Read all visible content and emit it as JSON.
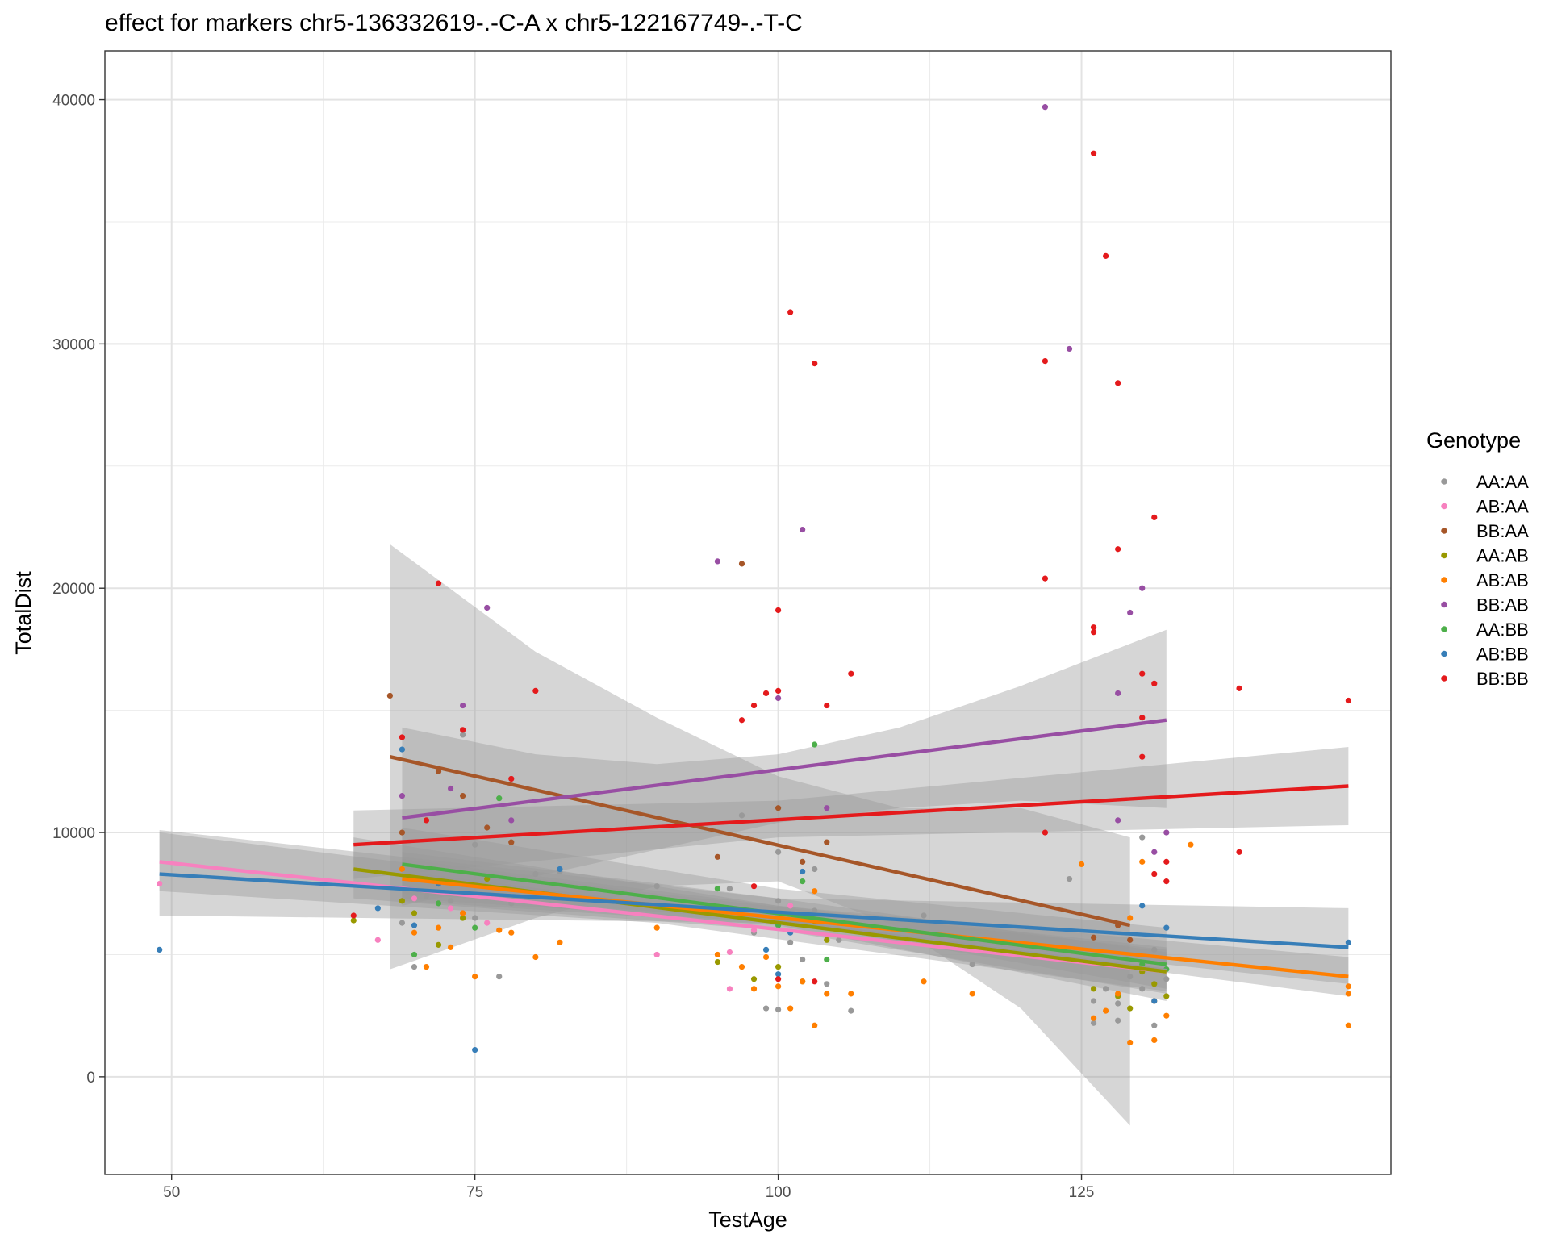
{
  "chart_data": {
    "type": "scatter",
    "title": "effect for markers chr5-136332619-.-C-A x chr5-122167749-.-T-C",
    "xlabel": "TestAge",
    "ylabel": "TotalDist",
    "xlim": [
      44.5,
      150.5
    ],
    "ylim": [
      -4000,
      42000
    ],
    "x_ticks": [
      50,
      75,
      100,
      125
    ],
    "y_ticks": [
      0,
      10000,
      20000,
      30000,
      40000
    ],
    "x_tick_labels": [
      "50",
      "75",
      "100",
      "125"
    ],
    "y_tick_labels": [
      "0",
      "10000",
      "20000",
      "30000",
      "40000"
    ],
    "grid": true,
    "legend": {
      "title": "Genotype",
      "position": "right"
    },
    "series": [
      {
        "name": "AA:AA",
        "color": "#999999",
        "points": [
          [
            69,
            6300
          ],
          [
            70,
            4500
          ],
          [
            71,
            7400
          ],
          [
            72,
            8000
          ],
          [
            73,
            7200
          ],
          [
            74,
            14000
          ],
          [
            75,
            9500
          ],
          [
            75,
            6500
          ],
          [
            77,
            4100
          ],
          [
            78,
            7100
          ],
          [
            80,
            8300
          ],
          [
            82,
            8400
          ],
          [
            90,
            7800
          ],
          [
            96,
            7700
          ],
          [
            98,
            5900
          ],
          [
            99,
            2800
          ],
          [
            100,
            2750
          ],
          [
            100,
            6500
          ],
          [
            100,
            7200
          ],
          [
            101,
            5500
          ],
          [
            102,
            4800
          ],
          [
            103,
            6800
          ],
          [
            104,
            3800
          ],
          [
            105,
            5600
          ],
          [
            106,
            2700
          ],
          [
            112,
            6600
          ],
          [
            116,
            4600
          ],
          [
            124,
            8100
          ],
          [
            126,
            2200
          ],
          [
            126,
            3100
          ],
          [
            127,
            3600
          ],
          [
            128,
            2300
          ],
          [
            128,
            3000
          ],
          [
            129,
            4100
          ],
          [
            130,
            3600
          ],
          [
            130,
            9800
          ],
          [
            131,
            2100
          ],
          [
            131,
            5200
          ],
          [
            132,
            4000
          ],
          [
            97,
            10700
          ],
          [
            100,
            9200
          ],
          [
            103,
            8500
          ]
        ],
        "fit": [
          [
            69,
            8350
          ],
          [
            132,
            4350
          ]
        ],
        "ci": {
          "x": [
            69,
            100,
            132
          ],
          "lower": [
            7500,
            6400,
            3600
          ],
          "upper": [
            9200,
            7300,
            5100
          ]
        }
      },
      {
        "name": "AB:AA",
        "color": "#F781BF",
        "points": [
          [
            49,
            7900
          ],
          [
            67,
            5600
          ],
          [
            70,
            7300
          ],
          [
            73,
            6900
          ],
          [
            76,
            6300
          ],
          [
            90,
            5000
          ],
          [
            96,
            3600
          ],
          [
            96,
            5100
          ],
          [
            98,
            6000
          ],
          [
            101,
            7000
          ]
        ],
        "fit": [
          [
            49,
            8800
          ],
          [
            132,
            4300
          ]
        ],
        "ci": {
          "x": [
            49,
            90,
            132
          ],
          "lower": [
            7600,
            6300,
            3500
          ],
          "upper": [
            10000,
            7500,
            5200
          ]
        }
      },
      {
        "name": "BB:AA",
        "color": "#A65628",
        "points": [
          [
            68,
            15600
          ],
          [
            69,
            10000
          ],
          [
            72,
            12500
          ],
          [
            74,
            11500
          ],
          [
            76,
            10200
          ],
          [
            78,
            9600
          ],
          [
            95,
            9000
          ],
          [
            97,
            21000
          ],
          [
            100,
            11000
          ],
          [
            102,
            8800
          ],
          [
            104,
            9600
          ],
          [
            126,
            5700
          ],
          [
            128,
            6200
          ],
          [
            129,
            5600
          ]
        ],
        "fit": [
          [
            68,
            13100
          ],
          [
            129,
            6200
          ]
        ],
        "ci": {
          "x": [
            68,
            80,
            90,
            100,
            110,
            120,
            129
          ],
          "lower": [
            4400,
            6500,
            7800,
            8000,
            6100,
            2800,
            -2000
          ],
          "upper": [
            21800,
            17400,
            14700,
            12300,
            11000,
            11000,
            9800
          ]
        }
      },
      {
        "name": "AA:AB",
        "color": "#999900",
        "points": [
          [
            65,
            6400
          ],
          [
            69,
            7200
          ],
          [
            70,
            6700
          ],
          [
            72,
            5400
          ],
          [
            74,
            6500
          ],
          [
            76,
            8100
          ],
          [
            95,
            4700
          ],
          [
            98,
            4000
          ],
          [
            100,
            4500
          ],
          [
            102,
            3900
          ],
          [
            103,
            6200
          ],
          [
            104,
            5600
          ],
          [
            126,
            3600
          ],
          [
            128,
            3300
          ],
          [
            129,
            2800
          ],
          [
            130,
            4300
          ],
          [
            131,
            3800
          ],
          [
            132,
            3300
          ]
        ],
        "fit": [
          [
            65,
            8500
          ],
          [
            132,
            4300
          ]
        ],
        "ci": {
          "x": [
            65,
            100,
            132
          ],
          "lower": [
            7300,
            6000,
            3400
          ],
          "upper": [
            9800,
            7000,
            5300
          ]
        }
      },
      {
        "name": "AB:AB",
        "color": "#FF7F00",
        "points": [
          [
            69,
            8500
          ],
          [
            70,
            5900
          ],
          [
            71,
            4500
          ],
          [
            72,
            6100
          ],
          [
            73,
            5300
          ],
          [
            74,
            6700
          ],
          [
            75,
            4100
          ],
          [
            76,
            7400
          ],
          [
            77,
            6000
          ],
          [
            78,
            5900
          ],
          [
            80,
            4900
          ],
          [
            82,
            5500
          ],
          [
            90,
            6100
          ],
          [
            95,
            5000
          ],
          [
            97,
            4500
          ],
          [
            98,
            3600
          ],
          [
            99,
            4900
          ],
          [
            100,
            3700
          ],
          [
            101,
            2800
          ],
          [
            102,
            3900
          ],
          [
            103,
            2100
          ],
          [
            103,
            7600
          ],
          [
            104,
            3400
          ],
          [
            106,
            3400
          ],
          [
            112,
            3900
          ],
          [
            116,
            3400
          ],
          [
            125,
            8700
          ],
          [
            126,
            2400
          ],
          [
            127,
            2700
          ],
          [
            128,
            3400
          ],
          [
            129,
            1400
          ],
          [
            129,
            6500
          ],
          [
            130,
            8800
          ],
          [
            131,
            1500
          ],
          [
            131,
            3100
          ],
          [
            132,
            2500
          ],
          [
            134,
            9500
          ],
          [
            147,
            3700
          ],
          [
            147,
            3400
          ],
          [
            147,
            2100
          ]
        ],
        "fit": [
          [
            69,
            8100
          ],
          [
            147,
            4100
          ]
        ],
        "ci": {
          "x": [
            69,
            100,
            147
          ],
          "lower": [
            7300,
            6300,
            3300
          ],
          "upper": [
            8900,
            7000,
            4900
          ]
        }
      },
      {
        "name": "BB:AB",
        "color": "#984EA3",
        "points": [
          [
            69,
            11500
          ],
          [
            73,
            11800
          ],
          [
            74,
            15200
          ],
          [
            76,
            19200
          ],
          [
            78,
            10500
          ],
          [
            95,
            21100
          ],
          [
            100,
            15500
          ],
          [
            102,
            22400
          ],
          [
            104,
            11000
          ],
          [
            122,
            39700
          ],
          [
            124,
            29800
          ],
          [
            128,
            15700
          ],
          [
            128,
            10500
          ],
          [
            129,
            19000
          ],
          [
            130,
            20000
          ],
          [
            131,
            9200
          ],
          [
            132,
            10000
          ]
        ],
        "fit": [
          [
            69,
            10600
          ],
          [
            132,
            14600
          ]
        ],
        "ci": {
          "x": [
            69,
            80,
            90,
            100,
            110,
            120,
            132
          ],
          "lower": [
            7000,
            8200,
            9300,
            10400,
            11000,
            11300,
            11000
          ],
          "upper": [
            14300,
            13200,
            12800,
            13200,
            14300,
            16000,
            18300
          ]
        }
      },
      {
        "name": "AA:BB",
        "color": "#4DAF4A",
        "points": [
          [
            70,
            5000
          ],
          [
            72,
            7100
          ],
          [
            75,
            6100
          ],
          [
            77,
            11400
          ],
          [
            95,
            7700
          ],
          [
            100,
            6200
          ],
          [
            102,
            8000
          ],
          [
            103,
            13600
          ],
          [
            104,
            4800
          ],
          [
            130,
            4600
          ],
          [
            132,
            4400
          ]
        ],
        "fit": [
          [
            69,
            8700
          ],
          [
            132,
            4600
          ]
        ],
        "ci": {
          "x": [
            69,
            100,
            132
          ],
          "lower": [
            7200,
            6200,
            3100
          ],
          "upper": [
            10200,
            7700,
            6100
          ]
        }
      },
      {
        "name": "AB:BB",
        "color": "#377EB8",
        "points": [
          [
            49,
            5200
          ],
          [
            67,
            6900
          ],
          [
            69,
            13400
          ],
          [
            70,
            6200
          ],
          [
            72,
            7900
          ],
          [
            75,
            1100
          ],
          [
            82,
            8500
          ],
          [
            99,
            5200
          ],
          [
            100,
            4200
          ],
          [
            101,
            5900
          ],
          [
            102,
            8400
          ],
          [
            130,
            7000
          ],
          [
            131,
            3100
          ],
          [
            132,
            6100
          ],
          [
            147,
            5500
          ]
        ],
        "fit": [
          [
            49,
            8300
          ],
          [
            147,
            5300
          ]
        ],
        "ci": {
          "x": [
            49,
            100,
            147
          ],
          "lower": [
            6600,
            6300,
            3800
          ],
          "upper": [
            10100,
            7300,
            6900
          ]
        }
      },
      {
        "name": "BB:BB",
        "color": "#E41A1C",
        "points": [
          [
            65,
            6600
          ],
          [
            69,
            13900
          ],
          [
            71,
            10500
          ],
          [
            72,
            20200
          ],
          [
            74,
            14200
          ],
          [
            78,
            12200
          ],
          [
            80,
            15800
          ],
          [
            97,
            14600
          ],
          [
            98,
            15200
          ],
          [
            99,
            15700
          ],
          [
            100,
            15800
          ],
          [
            100,
            19100
          ],
          [
            101,
            31300
          ],
          [
            103,
            29200
          ],
          [
            104,
            15200
          ],
          [
            106,
            16500
          ],
          [
            98,
            7800
          ],
          [
            100,
            4000
          ],
          [
            103,
            3900
          ],
          [
            122,
            29300
          ],
          [
            122,
            20400
          ],
          [
            122,
            10000
          ],
          [
            126,
            37800
          ],
          [
            126,
            18400
          ],
          [
            126,
            18200
          ],
          [
            127,
            33600
          ],
          [
            128,
            28400
          ],
          [
            128,
            21600
          ],
          [
            130,
            16500
          ],
          [
            130,
            14700
          ],
          [
            130,
            13100
          ],
          [
            131,
            22900
          ],
          [
            131,
            16100
          ],
          [
            131,
            8300
          ],
          [
            132,
            8800
          ],
          [
            132,
            8000
          ],
          [
            138,
            15900
          ],
          [
            138,
            9200
          ],
          [
            147,
            15400
          ]
        ],
        "fit": [
          [
            65,
            9500
          ],
          [
            147,
            11900
          ]
        ],
        "ci": {
          "x": [
            65,
            100,
            147
          ],
          "lower": [
            8100,
            9800,
            10300
          ],
          "upper": [
            10900,
            11300,
            13500
          ]
        }
      }
    ]
  }
}
